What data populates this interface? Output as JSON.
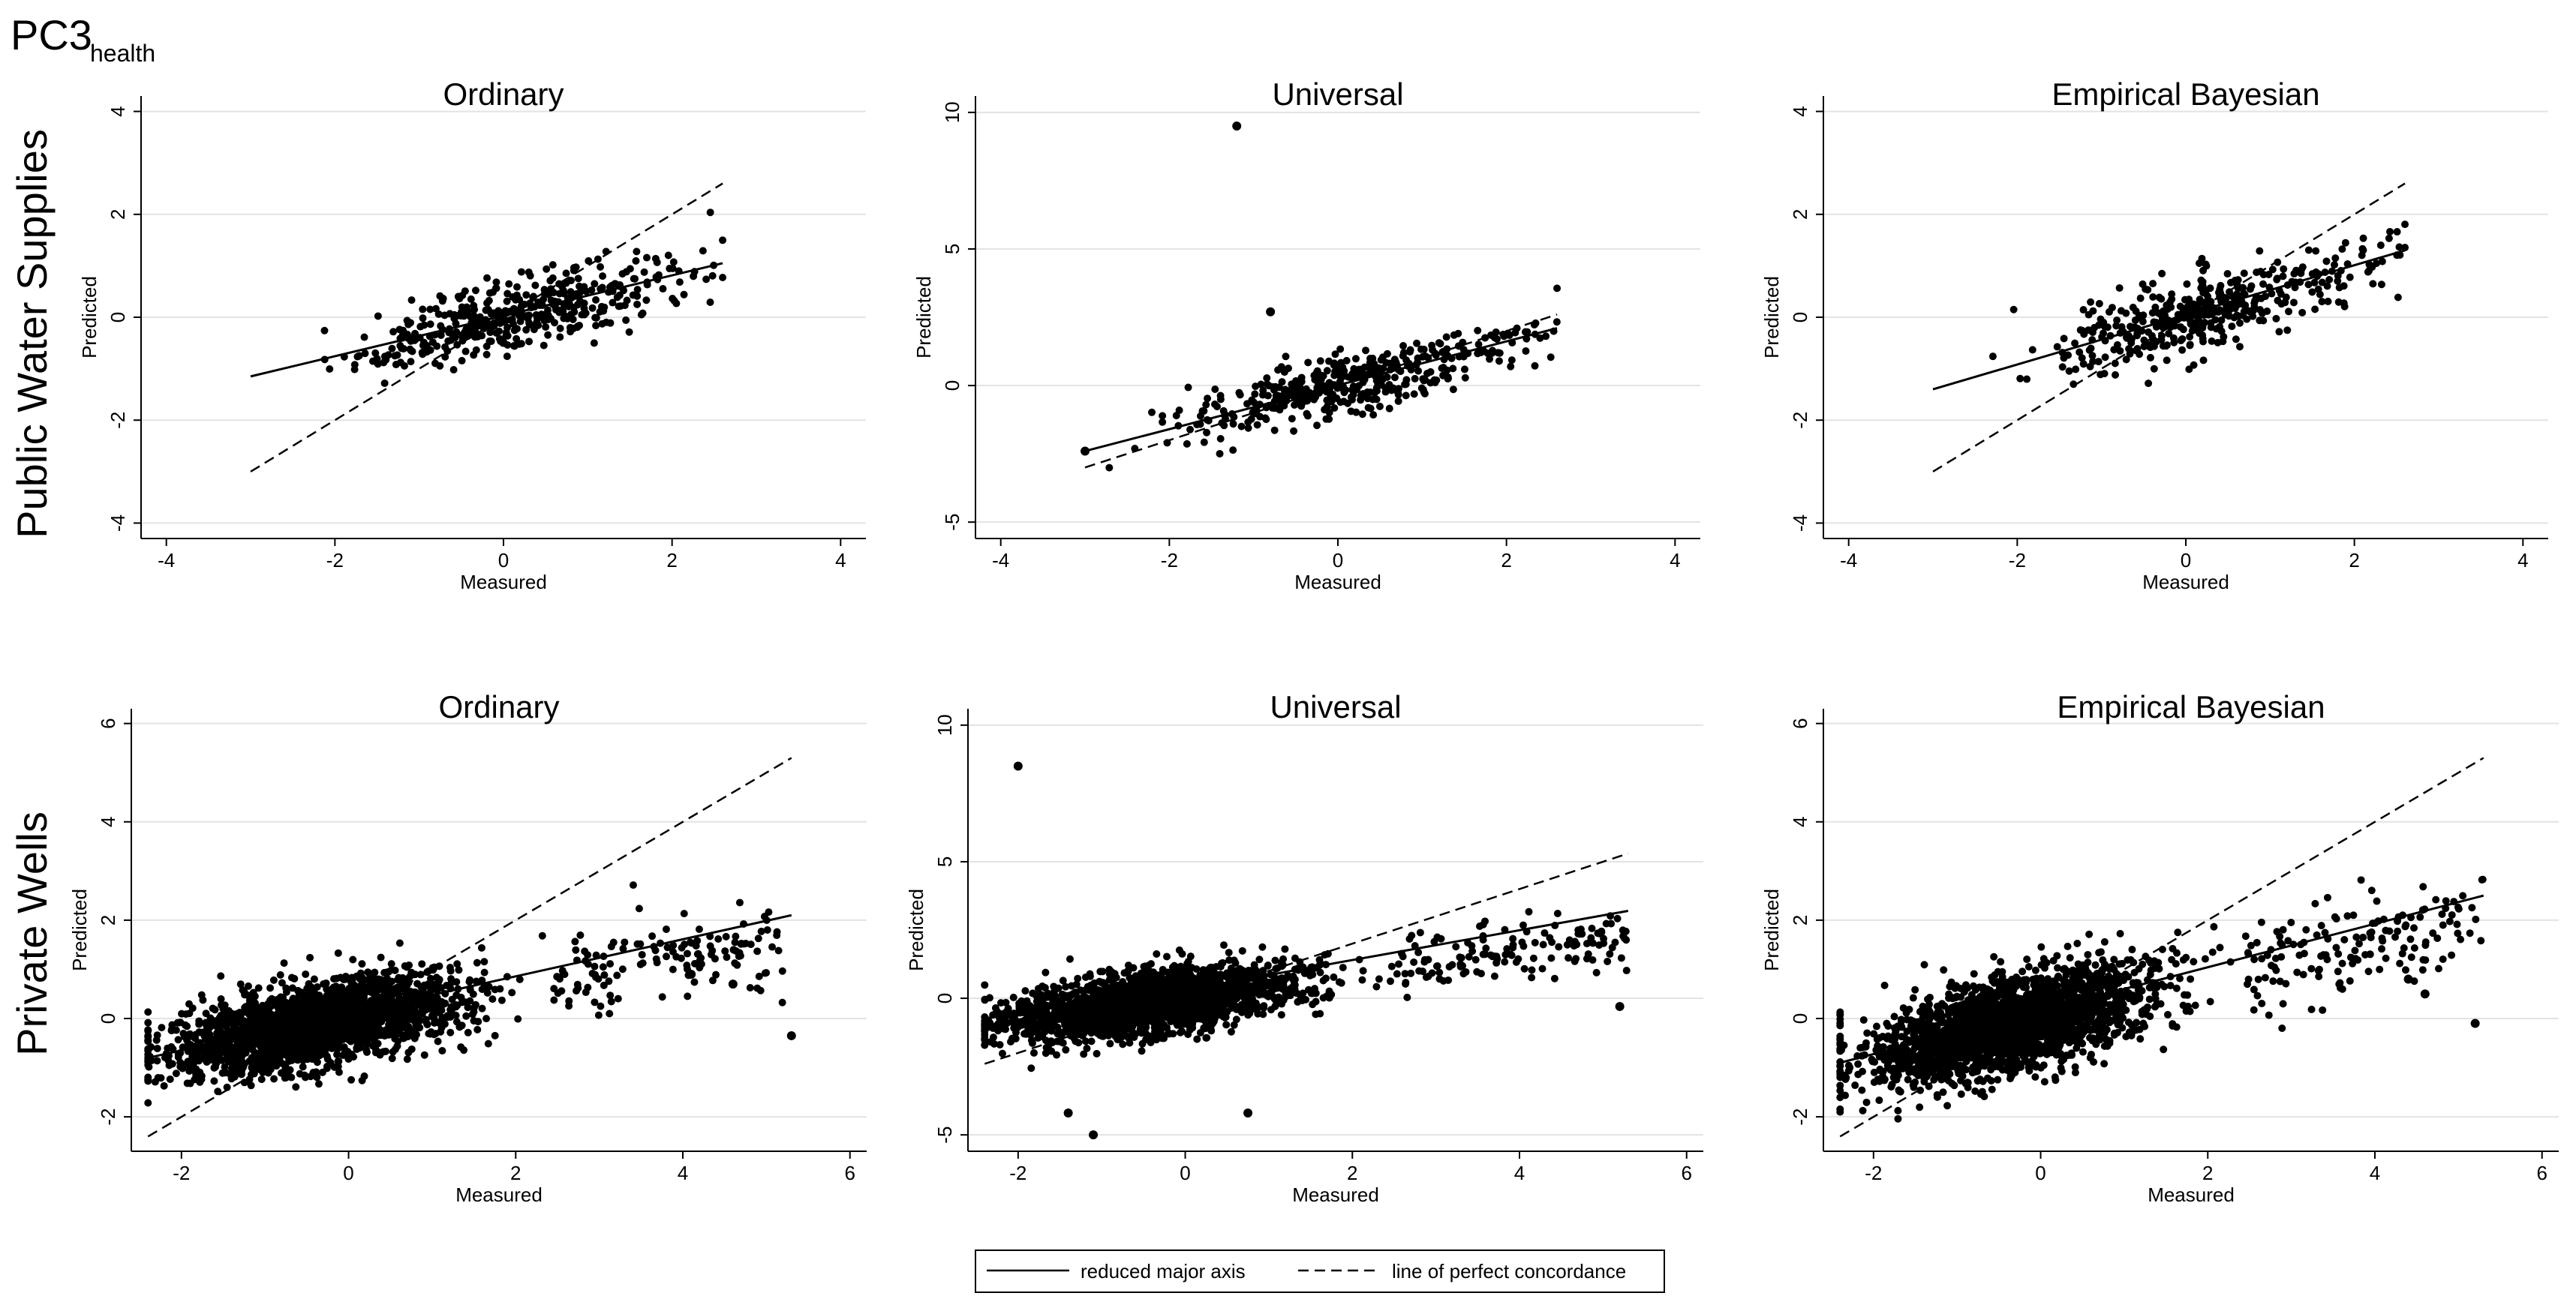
{
  "figure": {
    "title_main": "PC3",
    "title_sub": "health",
    "row_labels": [
      "Public Water Supplies",
      "Private Wells"
    ]
  },
  "legend": {
    "items": [
      {
        "label": "reduced major axis",
        "style": "solid"
      },
      {
        "label": "line of perfect concordance",
        "style": "dashed"
      }
    ]
  },
  "colors": {
    "points": "#000000",
    "grid": "#e3e3e3",
    "axis": "#000000",
    "text": "#000000"
  },
  "chart_data": [
    {
      "type": "scatter",
      "title": "Ordinary",
      "row": "Public Water Supplies",
      "xlabel": "Measured",
      "ylabel": "Predicted",
      "xlim": [
        -4.3,
        4.3
      ],
      "ylim": [
        -4.3,
        4.3
      ],
      "xticks": [
        -4,
        -2,
        0,
        2,
        4
      ],
      "yticks": [
        -4,
        -2,
        0,
        2,
        4
      ],
      "grid": true,
      "cloud": {
        "n": 420,
        "x_mean": 0.1,
        "x_sd": 0.85,
        "x_min": -3.0,
        "x_max": 2.6,
        "slope": 0.38,
        "y_sd": 0.32,
        "seed": 11
      },
      "outliers": [],
      "rma_line": [
        [
          -3.0,
          -1.15
        ],
        [
          2.6,
          1.05
        ]
      ],
      "concordance_line": [
        [
          -3.0,
          -3.0
        ],
        [
          2.6,
          2.6
        ]
      ]
    },
    {
      "type": "scatter",
      "title": "Universal",
      "row": "Public Water Supplies",
      "xlabel": "Measured",
      "ylabel": "Predicted",
      "xlim": [
        -4.3,
        4.3
      ],
      "ylim": [
        -5.6,
        10.6
      ],
      "xticks": [
        -4,
        -2,
        0,
        2,
        4
      ],
      "yticks": [
        -5,
        0,
        5,
        10
      ],
      "grid": true,
      "cloud": {
        "n": 420,
        "x_mean": 0.1,
        "x_sd": 0.85,
        "x_min": -3.0,
        "x_max": 2.6,
        "slope": 0.75,
        "y_sd": 0.55,
        "seed": 22
      },
      "outliers": [
        [
          -1.2,
          9.5
        ],
        [
          -0.8,
          2.7
        ],
        [
          -3.0,
          -2.4
        ]
      ],
      "rma_line": [
        [
          -3.0,
          -2.4
        ],
        [
          2.6,
          2.1
        ]
      ],
      "concordance_line": [
        [
          -3.0,
          -3.0
        ],
        [
          2.6,
          2.6
        ]
      ]
    },
    {
      "type": "scatter",
      "title": "Empirical Bayesian",
      "row": "Public Water Supplies",
      "xlabel": "Measured",
      "ylabel": "Predicted",
      "xlim": [
        -4.3,
        4.3
      ],
      "ylim": [
        -4.3,
        4.3
      ],
      "xticks": [
        -4,
        -2,
        0,
        2,
        4
      ],
      "yticks": [
        -4,
        -2,
        0,
        2,
        4
      ],
      "grid": true,
      "cloud": {
        "n": 420,
        "x_mean": 0.1,
        "x_sd": 0.85,
        "x_min": -3.0,
        "x_max": 2.6,
        "slope": 0.45,
        "y_sd": 0.38,
        "seed": 33
      },
      "outliers": [],
      "rma_line": [
        [
          -3.0,
          -1.4
        ],
        [
          2.6,
          1.3
        ]
      ],
      "concordance_line": [
        [
          -3.0,
          -3.0
        ],
        [
          2.6,
          2.6
        ]
      ]
    },
    {
      "type": "scatter",
      "title": "Ordinary",
      "row": "Private Wells",
      "xlabel": "Measured",
      "ylabel": "Predicted",
      "xlim": [
        -2.6,
        6.2
      ],
      "ylim": [
        -2.7,
        6.3
      ],
      "xticks": [
        -2,
        0,
        2,
        4,
        6
      ],
      "yticks": [
        -2,
        0,
        2,
        4,
        6
      ],
      "grid": true,
      "cloud": {
        "n": 2400,
        "x_mean": -0.4,
        "x_sd": 0.85,
        "x_min": -2.4,
        "x_max": 5.3,
        "slope": 0.32,
        "y_sd": 0.42,
        "seed": 44
      },
      "outliers": [
        [
          5.3,
          -0.35
        ],
        [
          4.6,
          0.7
        ],
        [
          4.1,
          0.9
        ]
      ],
      "rma_line": [
        [
          -2.4,
          -0.8
        ],
        [
          5.3,
          2.1
        ]
      ],
      "concordance_line": [
        [
          -2.4,
          -2.4
        ],
        [
          5.3,
          5.3
        ]
      ]
    },
    {
      "type": "scatter",
      "title": "Universal",
      "row": "Private Wells",
      "xlabel": "Measured",
      "ylabel": "Predicted",
      "xlim": [
        -2.6,
        6.2
      ],
      "ylim": [
        -5.6,
        10.6
      ],
      "xticks": [
        -2,
        0,
        2,
        4,
        6
      ],
      "yticks": [
        -5,
        0,
        5,
        10
      ],
      "grid": true,
      "cloud": {
        "n": 2400,
        "x_mean": -0.4,
        "x_sd": 0.85,
        "x_min": -2.4,
        "x_max": 5.3,
        "slope": 0.42,
        "y_sd": 0.55,
        "seed": 55
      },
      "outliers": [
        [
          -2.0,
          8.5
        ],
        [
          -1.1,
          -5.0
        ],
        [
          -1.4,
          -4.2
        ],
        [
          0.75,
          -4.2
        ],
        [
          5.2,
          -0.3
        ]
      ],
      "rma_line": [
        [
          -2.4,
          -1.0
        ],
        [
          5.3,
          3.2
        ]
      ],
      "concordance_line": [
        [
          -2.4,
          -2.4
        ],
        [
          5.3,
          5.3
        ]
      ]
    },
    {
      "type": "scatter",
      "title": "Empirical Bayesian",
      "row": "Private Wells",
      "xlabel": "Measured",
      "ylabel": "Predicted",
      "xlim": [
        -2.6,
        6.2
      ],
      "ylim": [
        -2.7,
        6.3
      ],
      "xticks": [
        -2,
        0,
        2,
        4,
        6
      ],
      "yticks": [
        -2,
        0,
        2,
        4,
        6
      ],
      "grid": true,
      "cloud": {
        "n": 2400,
        "x_mean": -0.4,
        "x_sd": 0.85,
        "x_min": -2.4,
        "x_max": 5.3,
        "slope": 0.4,
        "y_sd": 0.48,
        "seed": 66
      },
      "outliers": [
        [
          5.2,
          -0.1
        ],
        [
          4.6,
          0.5
        ],
        [
          4.4,
          0.8
        ]
      ],
      "rma_line": [
        [
          -2.4,
          -0.9
        ],
        [
          5.3,
          2.5
        ]
      ],
      "concordance_line": [
        [
          -2.4,
          -2.4
        ],
        [
          5.3,
          5.3
        ]
      ]
    }
  ]
}
